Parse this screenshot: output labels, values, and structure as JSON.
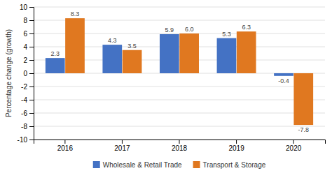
{
  "chart_data": {
    "type": "bar",
    "categories": [
      "2016",
      "2017",
      "2018",
      "2019",
      "2020"
    ],
    "series": [
      {
        "name": "Wholesale & Retail Trade",
        "color": "#4472C4",
        "values": [
          2.3,
          4.3,
          5.9,
          5.3,
          -0.4
        ]
      },
      {
        "name": "Transport & Storage",
        "color": "#E07820",
        "values": [
          8.3,
          3.5,
          6.0,
          6.3,
          -7.8
        ],
        "value_labels": [
          "8.3",
          "3.5",
          "6.0",
          "6.3",
          "-7.8"
        ]
      }
    ],
    "y_label": "Percentage change (growth)",
    "ylim": [
      -10,
      10
    ],
    "yticks": [
      -10,
      -8,
      -6,
      -4,
      -2,
      0,
      2,
      4,
      6,
      8,
      10
    ],
    "grid": true,
    "legend": "bottom",
    "data_labels": true
  }
}
